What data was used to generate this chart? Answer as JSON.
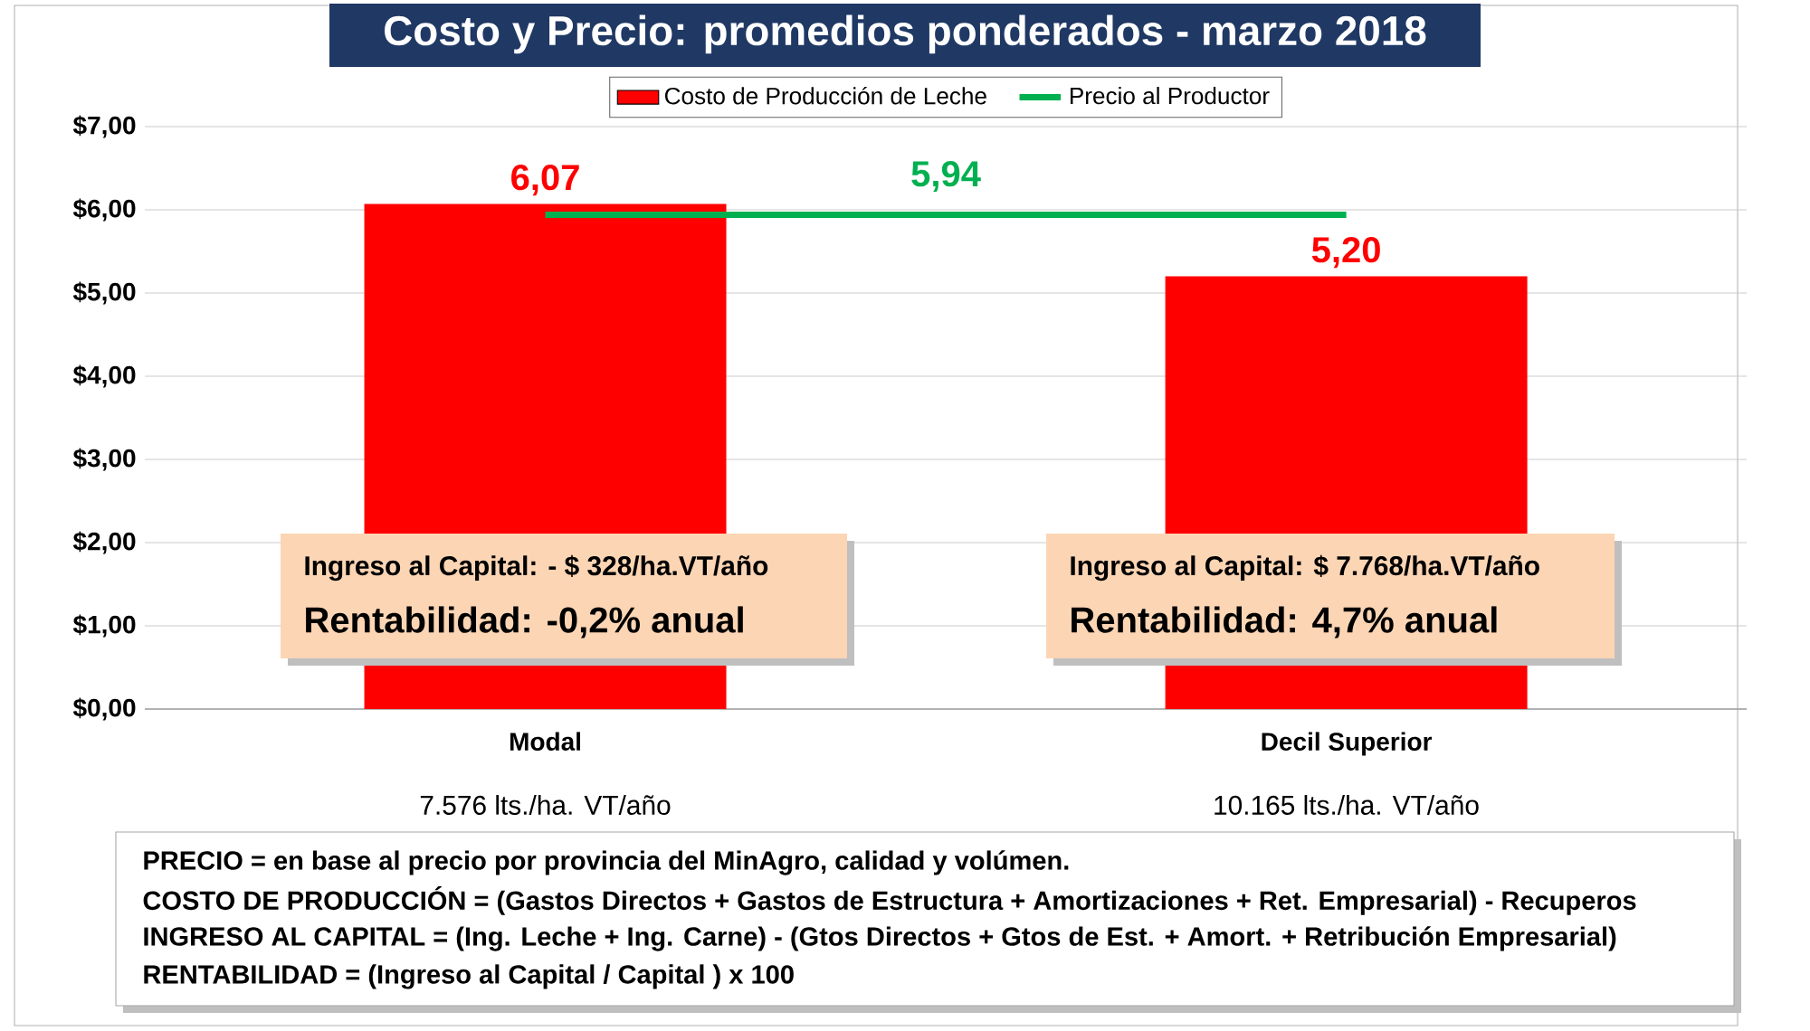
{
  "chart_data": {
    "type": "bar",
    "title": "Costo  y Precio: promedios ponderados - marzo 2018",
    "categories": [
      "Modal",
      "Decil Superior"
    ],
    "series": [
      {
        "name": "Costo de Producción de Leche",
        "color": "#ff0000",
        "values": [
          6.07,
          5.2
        ],
        "value_labels": [
          "6,07",
          "5,20"
        ]
      },
      {
        "name": "Precio al Productor",
        "type": "line",
        "color": "#00b050",
        "values": [
          5.94,
          5.94
        ]
      }
    ],
    "ylim": [
      0,
      7
    ],
    "yticks": [
      {
        "value": 0,
        "label": "$0,00"
      },
      {
        "value": 1,
        "label": "$1,00"
      },
      {
        "value": 2,
        "label": "$2,00"
      },
      {
        "value": 3,
        "label": "$3,00"
      },
      {
        "value": 4,
        "label": "$4,00"
      },
      {
        "value": 5,
        "label": "$5,00"
      },
      {
        "value": 6,
        "label": "$6,00"
      },
      {
        "value": 7,
        "label": "$7,00"
      }
    ],
    "grid": "y",
    "legend": "top",
    "annotations": [
      {
        "text": "5,94",
        "y": 5.94
      },
      "7.576 lts./ha. VT/año",
      "10.165 lts./ha.  VT/año",
      "Ingreso al Capital: - $ 328/ha.VT/año",
      "Rentabilidad: -0,2% anual",
      "Ingreso al Capital: $ 7.768/ha.VT/año",
      "Rentabilidad: 4,7% anual",
      "PRECIO = en base al precio por provincia del MinAgro, calidad y volúmen.",
      "COSTO DE PRODUCCIÓN = (Gastos Directos + Gastos de Estructura + Amortizaciones + Ret. Empresarial) - Recuperos",
      "INGRESO AL CAPITAL = (Ing. Leche + Ing. Carne) - (Gtos Directos + Gtos de Est. + Amort. + Retribución Empresarial)",
      "RENTABILIDAD = (Ingreso al Capital / Capital ) x 100"
    ]
  }
}
